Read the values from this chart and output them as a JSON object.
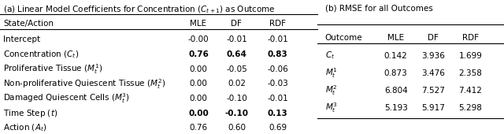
{
  "title_a": "(a) Linear Model Coefficients for Concentration ($C_{t+1}$) as Outcome",
  "title_b": "(b) RMSE for all Outcomes",
  "table_a_cols": [
    "State/Action",
    "MLE",
    "DF",
    "RDF"
  ],
  "table_a_rows": [
    [
      "Intercept",
      "-0.00",
      "-0.01",
      "-0.01"
    ],
    [
      "Concentration ($C_t$)",
      "0.76",
      "0.64",
      "0.83"
    ],
    [
      "Proliferative Tissue ($M_t^1$)",
      "0.00",
      "-0.05",
      "-0.06"
    ],
    [
      "Non-proliferative Quiescent Tissue ($M_t^2$)",
      "0.00",
      "0.02",
      "-0.03"
    ],
    [
      "Damaged Quiescent Cells ($M_t^3$)",
      "0.00",
      "-0.10",
      "-0.01"
    ],
    [
      "Time Step ($t$)",
      "0.00",
      "-0.10",
      "0.13"
    ],
    [
      "Action ($A_t$)",
      "0.76",
      "0.60",
      "0.69"
    ]
  ],
  "table_a_bold": [
    [
      false,
      false,
      false,
      false
    ],
    [
      false,
      true,
      true,
      true
    ],
    [
      false,
      false,
      false,
      false
    ],
    [
      false,
      false,
      false,
      false
    ],
    [
      false,
      false,
      false,
      false
    ],
    [
      false,
      true,
      true,
      true
    ],
    [
      false,
      false,
      false,
      false
    ]
  ],
  "table_b_cols": [
    "Outcome",
    "MLE",
    "DF",
    "RDF"
  ],
  "table_b_rows": [
    [
      "$C_t$",
      "0.142",
      "3.936",
      "1.699"
    ],
    [
      "$M_t^1$",
      "0.873",
      "3.476",
      "2.358"
    ],
    [
      "$M_t^2$",
      "6.804",
      "7.527",
      "7.412"
    ],
    [
      "$M_t^3$",
      "5.193",
      "5.917",
      "5.298"
    ]
  ],
  "figsize": [
    6.4,
    1.7
  ],
  "dpi": 100,
  "fs": 7.5
}
